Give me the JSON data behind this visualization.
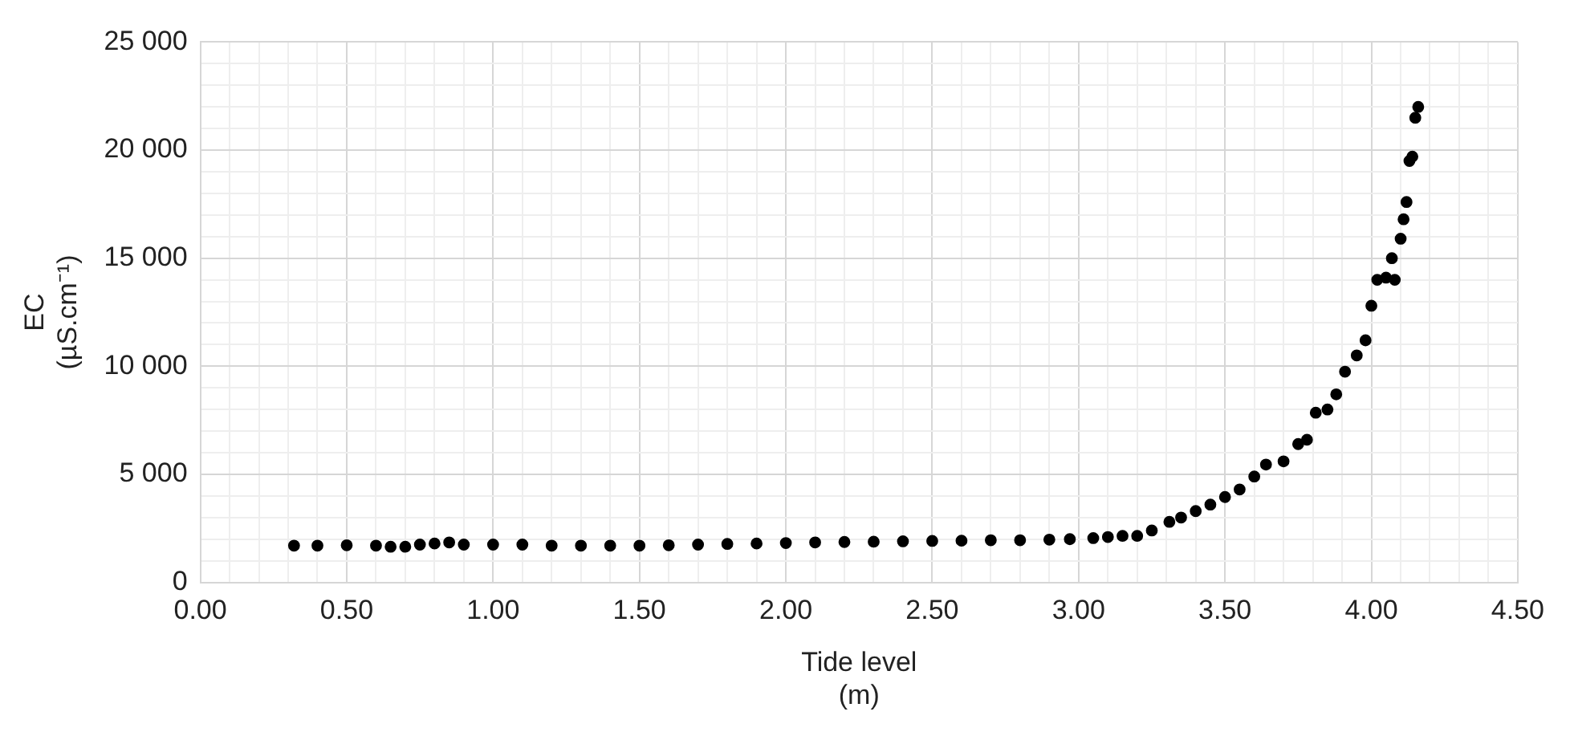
{
  "chart_data": {
    "type": "scatter",
    "xlabel": "Tide level\n(m)",
    "ylabel": "EC\n(µS.cm⁻¹)",
    "marker": "circle",
    "grid": true,
    "xlim": [
      0,
      4.5
    ],
    "ylim": [
      0,
      25000
    ],
    "xticks": [
      {
        "value": 0,
        "label": "0.00"
      },
      {
        "value": 0.1,
        "label": null
      },
      {
        "value": 0.2,
        "label": null
      },
      {
        "value": 0.3,
        "label": null
      },
      {
        "value": 0.4,
        "label": null
      },
      {
        "value": 0.5,
        "label": "0.50"
      },
      {
        "value": 0.6,
        "label": null
      },
      {
        "value": 0.7,
        "label": null
      },
      {
        "value": 0.8,
        "label": null
      },
      {
        "value": 0.9,
        "label": null
      },
      {
        "value": 1,
        "label": "1.00"
      },
      {
        "value": 1.1,
        "label": null
      },
      {
        "value": 1.2,
        "label": null
      },
      {
        "value": 1.3,
        "label": null
      },
      {
        "value": 1.4,
        "label": null
      },
      {
        "value": 1.5,
        "label": "1.50"
      },
      {
        "value": 1.6,
        "label": null
      },
      {
        "value": 1.7,
        "label": null
      },
      {
        "value": 1.8,
        "label": null
      },
      {
        "value": 1.9,
        "label": null
      },
      {
        "value": 2,
        "label": "2.00"
      },
      {
        "value": 2.1,
        "label": null
      },
      {
        "value": 2.2,
        "label": null
      },
      {
        "value": 2.3,
        "label": null
      },
      {
        "value": 2.4,
        "label": null
      },
      {
        "value": 2.5,
        "label": "2.50"
      },
      {
        "value": 2.6,
        "label": null
      },
      {
        "value": 2.7,
        "label": null
      },
      {
        "value": 2.8,
        "label": null
      },
      {
        "value": 2.9,
        "label": null
      },
      {
        "value": 3,
        "label": "3.00"
      },
      {
        "value": 3.1,
        "label": null
      },
      {
        "value": 3.2,
        "label": null
      },
      {
        "value": 3.3,
        "label": null
      },
      {
        "value": 3.4,
        "label": null
      },
      {
        "value": 3.5,
        "label": "3.50"
      },
      {
        "value": 3.6,
        "label": null
      },
      {
        "value": 3.7,
        "label": null
      },
      {
        "value": 3.8,
        "label": null
      },
      {
        "value": 3.9,
        "label": null
      },
      {
        "value": 4,
        "label": "4.00"
      },
      {
        "value": 4.1,
        "label": null
      },
      {
        "value": 4.2,
        "label": null
      },
      {
        "value": 4.3,
        "label": null
      },
      {
        "value": 4.4,
        "label": null
      },
      {
        "value": 4.5,
        "label": "4.50"
      }
    ],
    "yticks": [
      0,
      {
        "value": 1000,
        "label": null
      },
      {
        "value": 2000,
        "label": null
      },
      {
        "value": 3000,
        "label": null
      },
      {
        "value": 4000,
        "label": null
      },
      {
        "value": 5000,
        "label": "5 000"
      },
      {
        "value": 6000,
        "label": null
      },
      {
        "value": 7000,
        "label": null
      },
      {
        "value": 8000,
        "label": null
      },
      {
        "value": 9000,
        "label": null
      },
      {
        "value": 10000,
        "label": "10 000"
      },
      {
        "value": 11000,
        "label": null
      },
      {
        "value": 12000,
        "label": null
      },
      {
        "value": 13000,
        "label": null
      },
      {
        "value": 14000,
        "label": null
      },
      {
        "value": 15000,
        "label": "15 000"
      },
      {
        "value": 16000,
        "label": null
      },
      {
        "value": 17000,
        "label": null
      },
      {
        "value": 18000,
        "label": null
      },
      {
        "value": 19000,
        "label": null
      },
      {
        "value": 20000,
        "label": "20 000"
      },
      {
        "value": 21000,
        "label": null
      },
      {
        "value": 22000,
        "label": null
      },
      {
        "value": 23000,
        "label": null
      },
      {
        "value": 24000,
        "label": null
      },
      {
        "value": 25000,
        "label": "25 000"
      }
    ],
    "series": [
      {
        "color": "#000000",
        "x": [
          0.32,
          0.4,
          0.5,
          0.6,
          0.65,
          0.7,
          0.75,
          0.8,
          0.85,
          0.9,
          1.0,
          1.1,
          1.2,
          1.3,
          1.4,
          1.5,
          1.6,
          1.7,
          1.8,
          1.9,
          2.0,
          2.1,
          2.2,
          2.3,
          2.4,
          2.5,
          2.6,
          2.7,
          2.8,
          2.9,
          2.97,
          3.05,
          3.1,
          3.15,
          3.2,
          3.25,
          3.31,
          3.35,
          3.4,
          3.45,
          3.5,
          3.55,
          3.6,
          3.64,
          3.7,
          3.75,
          3.78,
          3.81,
          3.85,
          3.88,
          3.91,
          3.95,
          3.98,
          4.0,
          4.02,
          4.05,
          4.08,
          4.07,
          4.1,
          4.11,
          4.12,
          4.13,
          4.14,
          4.15,
          4.16
        ],
        "values": [
          1700,
          1700,
          1720,
          1700,
          1650,
          1650,
          1750,
          1800,
          1850,
          1750,
          1750,
          1750,
          1700,
          1700,
          1700,
          1700,
          1720,
          1750,
          1780,
          1800,
          1820,
          1850,
          1870,
          1880,
          1900,
          1920,
          1930,
          1950,
          1950,
          1980,
          2000,
          2050,
          2100,
          2150,
          2150,
          2400,
          2800,
          3000,
          3300,
          3600,
          3950,
          4300,
          4900,
          5450,
          5600,
          6400,
          6600,
          7850,
          8000,
          8700,
          9750,
          10500,
          11200,
          12800,
          14000,
          14100,
          14000,
          15000,
          15900,
          16800,
          17600,
          19500,
          19700,
          21500,
          22000
        ]
      }
    ]
  }
}
